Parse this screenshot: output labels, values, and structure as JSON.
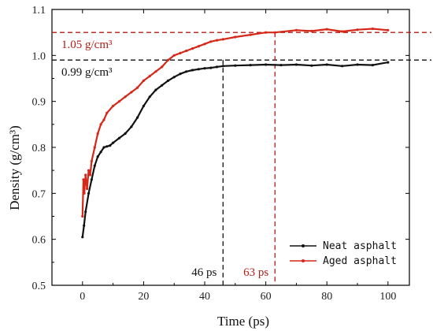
{
  "chart_data": {
    "type": "line",
    "title": "",
    "xlabel": "Time (ps)",
    "ylabel": "Density (g/cm³)",
    "xlim": [
      -10,
      107
    ],
    "ylim": [
      0.5,
      1.1
    ],
    "x_ticks": [
      "0",
      "20",
      "40",
      "60",
      "80",
      "100"
    ],
    "y_ticks": [
      "0.5",
      "0.6",
      "0.7",
      "0.8",
      "0.9",
      "1.0",
      "1.1"
    ],
    "grid": false,
    "legend_position": "bottom-right",
    "colors": {
      "neat": "#111111",
      "aged": "#d62718"
    },
    "series": [
      {
        "name": "Neat asphalt",
        "color": "#111111",
        "x": [
          0,
          0.5,
          1,
          2,
          3,
          4,
          5,
          6,
          7,
          8,
          9,
          10,
          12,
          14,
          16,
          18,
          20,
          22,
          24,
          26,
          28,
          30,
          32,
          34,
          36,
          38,
          40,
          42,
          44,
          46,
          50,
          55,
          60,
          65,
          70,
          75,
          80,
          85,
          90,
          95,
          100
        ],
        "y": [
          0.605,
          0.63,
          0.66,
          0.7,
          0.73,
          0.76,
          0.78,
          0.79,
          0.8,
          0.802,
          0.804,
          0.81,
          0.82,
          0.83,
          0.845,
          0.865,
          0.89,
          0.91,
          0.925,
          0.935,
          0.945,
          0.953,
          0.96,
          0.965,
          0.968,
          0.97,
          0.972,
          0.973,
          0.975,
          0.977,
          0.978,
          0.979,
          0.98,
          0.979,
          0.98,
          0.978,
          0.98,
          0.977,
          0.98,
          0.979,
          0.985
        ]
      },
      {
        "name": "Aged asphalt",
        "color": "#d62718",
        "x": [
          0,
          0.3,
          0.6,
          1,
          1.5,
          2,
          2.5,
          3,
          4,
          5,
          6,
          7,
          8,
          10,
          12,
          14,
          16,
          18,
          20,
          22,
          24,
          26,
          28,
          30,
          32,
          34,
          36,
          38,
          40,
          42,
          44,
          46,
          50,
          55,
          60,
          63,
          70,
          75,
          80,
          85,
          90,
          95,
          100
        ],
        "y": [
          0.65,
          0.73,
          0.7,
          0.74,
          0.71,
          0.75,
          0.74,
          0.77,
          0.8,
          0.83,
          0.85,
          0.86,
          0.875,
          0.89,
          0.9,
          0.91,
          0.92,
          0.93,
          0.945,
          0.955,
          0.965,
          0.975,
          0.99,
          1.0,
          1.005,
          1.01,
          1.015,
          1.02,
          1.025,
          1.03,
          1.033,
          1.035,
          1.04,
          1.045,
          1.05,
          1.05,
          1.055,
          1.053,
          1.057,
          1.052,
          1.056,
          1.058,
          1.055
        ]
      }
    ],
    "reference_lines": {
      "horizontal": [
        {
          "y": 1.05,
          "label": "1.05 g/cm³",
          "color": "#b01e14"
        },
        {
          "y": 0.99,
          "label": "0.99 g/cm³",
          "color": "#111111"
        }
      ],
      "vertical": [
        {
          "x": 46,
          "label": "46 ps",
          "color": "#111111"
        },
        {
          "x": 63,
          "label": "63 ps",
          "color": "#b01e14"
        }
      ]
    }
  }
}
